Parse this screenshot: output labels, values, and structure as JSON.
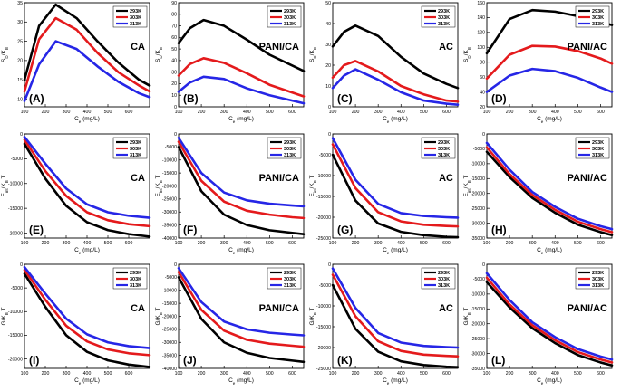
{
  "figure": {
    "columns": [
      "CA",
      "PANI/CA",
      "AC",
      "PANI/AC"
    ],
    "rows": [
      "S_D/K_B",
      "E_int/K_B T",
      "G/K_B T"
    ]
  },
  "chart_data": [
    {
      "type": "line",
      "tag": "(A)",
      "label": "CA",
      "ylabel": "S_D/K_B",
      "xlabel": "C_e (mg/L)",
      "x": [
        100,
        170,
        250,
        350,
        450,
        550,
        650,
        700
      ],
      "xlim": [
        100,
        700
      ],
      "ylim": [
        8,
        35
      ],
      "xticks": [
        100,
        200,
        300,
        400,
        500,
        600
      ],
      "yticks": [
        10,
        15,
        20,
        25,
        30,
        35
      ],
      "series": [
        {
          "name": "293K",
          "color": "#000000",
          "values": [
            15,
            29,
            34.5,
            31,
            25,
            19.5,
            15,
            13.5
          ]
        },
        {
          "name": "303K",
          "color": "#e41a1c",
          "values": [
            12,
            25.5,
            31,
            28,
            22,
            17,
            13.5,
            12
          ]
        },
        {
          "name": "313K",
          "color": "#2626e6",
          "values": [
            9.5,
            19,
            25,
            23,
            18.5,
            14.5,
            11.5,
            10.5
          ]
        }
      ]
    },
    {
      "type": "line",
      "tag": "(B)",
      "label": "PANI/CA",
      "ylabel": "S_D/K_B",
      "xlabel": "C_e (mg/L)",
      "x": [
        100,
        150,
        210,
        300,
        400,
        500,
        650
      ],
      "xlim": [
        100,
        650
      ],
      "ylim": [
        0,
        90
      ],
      "xticks": [
        100,
        200,
        300,
        400,
        500,
        600
      ],
      "yticks": [
        0,
        10,
        20,
        30,
        40,
        50,
        60,
        70,
        80,
        90
      ],
      "series": [
        {
          "name": "293K",
          "color": "#000000",
          "values": [
            55,
            68,
            75,
            70,
            58,
            45,
            31
          ]
        },
        {
          "name": "303K",
          "color": "#e41a1c",
          "values": [
            27,
            37,
            42,
            38,
            29,
            19,
            9
          ]
        },
        {
          "name": "313K",
          "color": "#2626e6",
          "values": [
            13,
            21,
            26,
            24,
            16,
            10,
            3
          ]
        }
      ]
    },
    {
      "type": "line",
      "tag": "(C)",
      "label": "AC",
      "ylabel": "S_D/K_B",
      "xlabel": "C_e (mg/L)",
      "x": [
        100,
        150,
        200,
        300,
        400,
        500,
        600,
        650
      ],
      "xlim": [
        100,
        650
      ],
      "ylim": [
        0,
        50
      ],
      "xticks": [
        100,
        200,
        300,
        400,
        500,
        600
      ],
      "yticks": [
        0,
        10,
        20,
        30,
        40,
        50
      ],
      "series": [
        {
          "name": "293K",
          "color": "#000000",
          "values": [
            29,
            36,
            39,
            34,
            24,
            16,
            11,
            9
          ]
        },
        {
          "name": "303K",
          "color": "#e41a1c",
          "values": [
            14,
            20,
            22,
            17,
            10,
            6,
            3,
            2.5
          ]
        },
        {
          "name": "313K",
          "color": "#2626e6",
          "values": [
            9,
            15,
            18,
            13,
            7,
            3,
            1.5,
            1
          ]
        }
      ]
    },
    {
      "type": "line",
      "tag": "(D)",
      "label": "PANI/AC",
      "ylabel": "S_D/K_B",
      "xlabel": "C_e (mg/L)",
      "x": [
        100,
        200,
        300,
        400,
        500,
        600,
        650
      ],
      "xlim": [
        100,
        650
      ],
      "ylim": [
        20,
        160
      ],
      "xticks": [
        100,
        200,
        300,
        400,
        500,
        600
      ],
      "yticks": [
        20,
        40,
        60,
        80,
        100,
        120,
        140,
        160
      ],
      "series": [
        {
          "name": "293K",
          "color": "#000000",
          "values": [
            92,
            138,
            150,
            148,
            142,
            134,
            130
          ]
        },
        {
          "name": "303K",
          "color": "#e41a1c",
          "values": [
            58,
            90,
            102,
            101,
            95,
            85,
            78
          ]
        },
        {
          "name": "313K",
          "color": "#2626e6",
          "values": [
            40,
            62,
            71,
            68,
            59,
            46,
            40
          ]
        }
      ]
    },
    {
      "type": "line",
      "tag": "(E)",
      "label": "CA",
      "ylabel": "E_int/K_B T",
      "xlabel": "C_e (mg/L)",
      "x": [
        100,
        200,
        300,
        400,
        500,
        600,
        700
      ],
      "xlim": [
        100,
        700
      ],
      "ylim": [
        -21000,
        0
      ],
      "xticks": [
        100,
        200,
        300,
        400,
        500,
        600
      ],
      "yticks": [
        0,
        -5000,
        -10000,
        -15000,
        -20000
      ],
      "series": [
        {
          "name": "293K",
          "color": "#000000",
          "values": [
            -2000,
            -9000,
            -14500,
            -17800,
            -19400,
            -20200,
            -20700
          ]
        },
        {
          "name": "303K",
          "color": "#e41a1c",
          "values": [
            -1200,
            -7500,
            -12500,
            -15800,
            -17400,
            -18200,
            -18600
          ]
        },
        {
          "name": "313K",
          "color": "#2626e6",
          "values": [
            -600,
            -6000,
            -11000,
            -14200,
            -15800,
            -16500,
            -16900
          ]
        }
      ]
    },
    {
      "type": "line",
      "tag": "(F)",
      "label": "PANI/CA",
      "ylabel": "E_int/K_B T",
      "xlabel": "C_e (mg/L)",
      "x": [
        100,
        200,
        300,
        400,
        500,
        600,
        650
      ],
      "xlim": [
        100,
        650
      ],
      "ylim": [
        -40000,
        0
      ],
      "xticks": [
        100,
        200,
        300,
        400,
        500,
        600
      ],
      "yticks": [
        0,
        -5000,
        -10000,
        -15000,
        -20000,
        -25000,
        -30000,
        -35000,
        -40000
      ],
      "series": [
        {
          "name": "293K",
          "color": "#000000",
          "values": [
            -5000,
            -22000,
            -31000,
            -35000,
            -37000,
            -38000,
            -38500
          ]
        },
        {
          "name": "303K",
          "color": "#e41a1c",
          "values": [
            -3000,
            -18000,
            -26000,
            -29500,
            -31000,
            -32000,
            -32300
          ]
        },
        {
          "name": "313K",
          "color": "#2626e6",
          "values": [
            -1500,
            -15000,
            -22500,
            -25500,
            -26800,
            -27500,
            -27800
          ]
        }
      ]
    },
    {
      "type": "line",
      "tag": "(G)",
      "label": "AC",
      "ylabel": "E_int/K_B T",
      "xlabel": "C_e (mg/L)",
      "x": [
        100,
        200,
        300,
        400,
        500,
        600,
        650
      ],
      "xlim": [
        100,
        650
      ],
      "ylim": [
        -25000,
        0
      ],
      "xticks": [
        100,
        200,
        300,
        400,
        500,
        600
      ],
      "yticks": [
        0,
        -5000,
        -10000,
        -15000,
        -20000,
        -25000
      ],
      "series": [
        {
          "name": "293K",
          "color": "#000000",
          "values": [
            -5000,
            -16000,
            -21500,
            -23500,
            -24300,
            -24700,
            -24800
          ]
        },
        {
          "name": "303K",
          "color": "#e41a1c",
          "values": [
            -2500,
            -13000,
            -18800,
            -21000,
            -21800,
            -22100,
            -22200
          ]
        },
        {
          "name": "313K",
          "color": "#2626e6",
          "values": [
            -1000,
            -11000,
            -16800,
            -19000,
            -19700,
            -20000,
            -20100
          ]
        }
      ]
    },
    {
      "type": "line",
      "tag": "(H)",
      "label": "PANI/AC",
      "ylabel": "E_int/K_B T",
      "xlabel": "C_e (mg/L)",
      "x": [
        100,
        200,
        300,
        400,
        500,
        600,
        650
      ],
      "xlim": [
        100,
        650
      ],
      "ylim": [
        -35000,
        0
      ],
      "xticks": [
        100,
        200,
        300,
        400,
        500,
        600
      ],
      "yticks": [
        0,
        -5000,
        -10000,
        -15000,
        -20000,
        -25000,
        -30000,
        -35000
      ],
      "series": [
        {
          "name": "293K",
          "color": "#000000",
          "values": [
            -6000,
            -14500,
            -21500,
            -26500,
            -30500,
            -33000,
            -34000
          ]
        },
        {
          "name": "303K",
          "color": "#e41a1c",
          "values": [
            -4500,
            -13500,
            -20500,
            -25500,
            -29500,
            -32000,
            -33000
          ]
        },
        {
          "name": "313K",
          "color": "#2626e6",
          "values": [
            -3000,
            -12000,
            -19500,
            -24500,
            -28500,
            -31000,
            -32000
          ]
        }
      ]
    },
    {
      "type": "line",
      "tag": "(I)",
      "label": "CA",
      "ylabel": "G/K_B T",
      "xlabel": "C_e (mg/L)",
      "x": [
        100,
        200,
        300,
        400,
        500,
        600,
        700
      ],
      "xlim": [
        100,
        700
      ],
      "ylim": [
        -22000,
        0
      ],
      "xticks": [
        100,
        200,
        300,
        400,
        500,
        600
      ],
      "yticks": [
        0,
        -5000,
        -10000,
        -15000,
        -20000
      ],
      "series": [
        {
          "name": "293K",
          "color": "#000000",
          "values": [
            -2000,
            -9000,
            -15000,
            -18500,
            -20300,
            -21200,
            -21700
          ]
        },
        {
          "name": "303K",
          "color": "#e41a1c",
          "values": [
            -1200,
            -7500,
            -13000,
            -16300,
            -18000,
            -18800,
            -19200
          ]
        },
        {
          "name": "313K",
          "color": "#2626e6",
          "values": [
            -600,
            -6200,
            -11500,
            -14800,
            -16500,
            -17300,
            -17700
          ]
        }
      ]
    },
    {
      "type": "line",
      "tag": "(J)",
      "label": "PANI/CA",
      "ylabel": "G/K_B T",
      "xlabel": "C_e (mg/L)",
      "x": [
        100,
        200,
        300,
        400,
        500,
        600,
        650
      ],
      "xlim": [
        100,
        650
      ],
      "ylim": [
        -40000,
        0
      ],
      "xticks": [
        100,
        200,
        300,
        400,
        500,
        600
      ],
      "yticks": [
        0,
        -5000,
        -10000,
        -15000,
        -20000,
        -25000,
        -30000,
        -35000,
        -40000
      ],
      "series": [
        {
          "name": "293K",
          "color": "#000000",
          "values": [
            -5000,
            -21000,
            -30000,
            -34000,
            -36000,
            -37000,
            -37500
          ]
        },
        {
          "name": "303K",
          "color": "#e41a1c",
          "values": [
            -3000,
            -17500,
            -25500,
            -29000,
            -30500,
            -31300,
            -31700
          ]
        },
        {
          "name": "313K",
          "color": "#2626e6",
          "values": [
            -1500,
            -14500,
            -22000,
            -25000,
            -26300,
            -27000,
            -27300
          ]
        }
      ]
    },
    {
      "type": "line",
      "tag": "(K)",
      "label": "AC",
      "ylabel": "G/K_B T",
      "xlabel": "C_e (mg/L)",
      "x": [
        100,
        200,
        300,
        400,
        500,
        600,
        650
      ],
      "xlim": [
        100,
        650
      ],
      "ylim": [
        -25000,
        0
      ],
      "xticks": [
        100,
        200,
        300,
        400,
        500,
        600
      ],
      "yticks": [
        0,
        -5000,
        -10000,
        -15000,
        -20000,
        -25000
      ],
      "series": [
        {
          "name": "293K",
          "color": "#000000",
          "values": [
            -5000,
            -15500,
            -21000,
            -23300,
            -24200,
            -24600,
            -24700
          ]
        },
        {
          "name": "303K",
          "color": "#e41a1c",
          "values": [
            -2500,
            -12500,
            -18500,
            -20800,
            -21700,
            -22000,
            -22100
          ]
        },
        {
          "name": "313K",
          "color": "#2626e6",
          "values": [
            -1000,
            -10500,
            -16500,
            -18800,
            -19600,
            -19900,
            -20000
          ]
        }
      ]
    },
    {
      "type": "line",
      "tag": "(L)",
      "label": "PANI/AC",
      "ylabel": "G/K_B T",
      "xlabel": "C_e (mg/L)",
      "x": [
        100,
        200,
        300,
        400,
        500,
        600,
        650
      ],
      "xlim": [
        100,
        650
      ],
      "ylim": [
        -35000,
        0
      ],
      "xticks": [
        100,
        200,
        300,
        400,
        500,
        600
      ],
      "yticks": [
        0,
        -5000,
        -10000,
        -15000,
        -20000,
        -25000,
        -30000,
        -35000
      ],
      "series": [
        {
          "name": "293K",
          "color": "#000000",
          "values": [
            -6000,
            -14500,
            -21500,
            -26500,
            -30500,
            -33000,
            -34000
          ]
        },
        {
          "name": "303K",
          "color": "#e41a1c",
          "values": [
            -4500,
            -13500,
            -20500,
            -25500,
            -29500,
            -32000,
            -33000
          ]
        },
        {
          "name": "313K",
          "color": "#2626e6",
          "values": [
            -3000,
            -12000,
            -19500,
            -24500,
            -28500,
            -31000,
            -32000
          ]
        }
      ]
    }
  ]
}
